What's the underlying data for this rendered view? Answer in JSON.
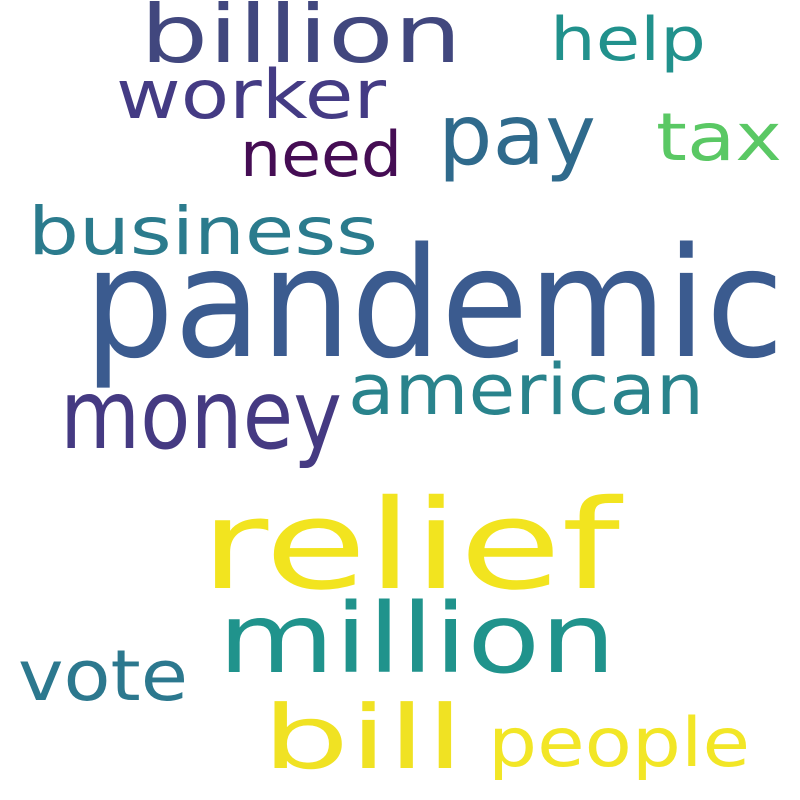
{
  "words": [
    {
      "text": "pandemic",
      "color": "#3b5b8f"
    },
    {
      "text": "relief",
      "color": "#f2e41f"
    },
    {
      "text": "million",
      "color": "#20938c"
    },
    {
      "text": "money",
      "color": "#453a82"
    },
    {
      "text": "billion",
      "color": "#41477e"
    },
    {
      "text": "pay",
      "color": "#2f6a8c"
    },
    {
      "text": "american",
      "color": "#29838c"
    },
    {
      "text": "bill",
      "color": "#f0e223"
    },
    {
      "text": "people",
      "color": "#f2e626"
    },
    {
      "text": "business",
      "color": "#2b7b8d"
    },
    {
      "text": "worker",
      "color": "#443b84"
    },
    {
      "text": "tax",
      "color": "#5ac864"
    },
    {
      "text": "vote",
      "color": "#2c788e"
    },
    {
      "text": "help",
      "color": "#21918c"
    },
    {
      "text": "need",
      "color": "#450d54"
    }
  ]
}
